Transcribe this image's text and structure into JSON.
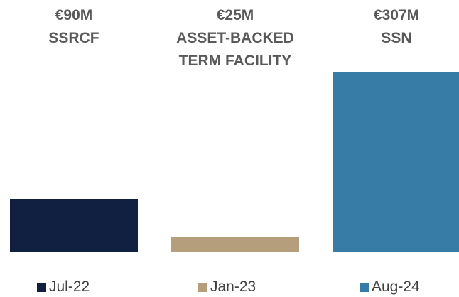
{
  "chart_data": {
    "type": "bar",
    "categories": [
      "SSRCF",
      "ASSET-BACKED TERM FACILITY",
      "SSN"
    ],
    "values": [
      90,
      25,
      307
    ],
    "value_labels": [
      "€90M",
      "€25M",
      "€307M"
    ],
    "colors": [
      "#111f40",
      "#b59e7b",
      "#367ca6"
    ],
    "legend": [
      "Jul-22",
      "Jan-23",
      "Aug-24"
    ]
  }
}
